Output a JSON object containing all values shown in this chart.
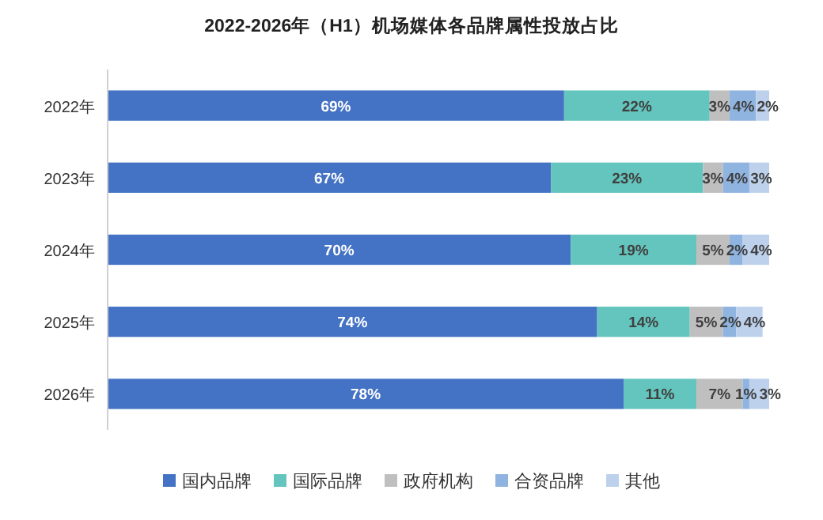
{
  "chart_data": {
    "type": "bar",
    "title": "2022-2026年（H1）机场媒体各品牌属性投放占比",
    "orientation": "horizontal",
    "stacked": true,
    "legend": "bottom",
    "categories": [
      "2022年",
      "2023年",
      "2024年",
      "2025年",
      "2026年"
    ],
    "series": [
      {
        "name": "国内品牌",
        "color": "#4472c4",
        "values": [
          69,
          67,
          70,
          74,
          78
        ],
        "value_labels": [
          "69%",
          "67%",
          "70%",
          "74%",
          "78%"
        ]
      },
      {
        "name": "国际品牌",
        "color": "#63c5bd",
        "values": [
          22,
          23,
          19,
          14,
          11
        ],
        "value_labels": [
          "22%",
          "23%",
          "19%",
          "14%",
          "11%"
        ]
      },
      {
        "name": "政府机构",
        "color": "#bfbfbf",
        "values": [
          3,
          3,
          5,
          5,
          7
        ],
        "value_labels": [
          "3%",
          "3%",
          "5%",
          "5%",
          "7%"
        ]
      },
      {
        "name": "合资品牌",
        "color": "#8fb4e0",
        "values": [
          4,
          4,
          2,
          2,
          1
        ],
        "value_labels": [
          "4%",
          "4%",
          "2%",
          "2%",
          "1%"
        ]
      },
      {
        "name": "其他",
        "color": "#bdd1ec",
        "values": [
          2,
          3,
          4,
          4,
          3
        ],
        "value_labels": [
          "2%",
          "3%",
          "4%",
          "4%",
          "3%"
        ]
      }
    ]
  }
}
